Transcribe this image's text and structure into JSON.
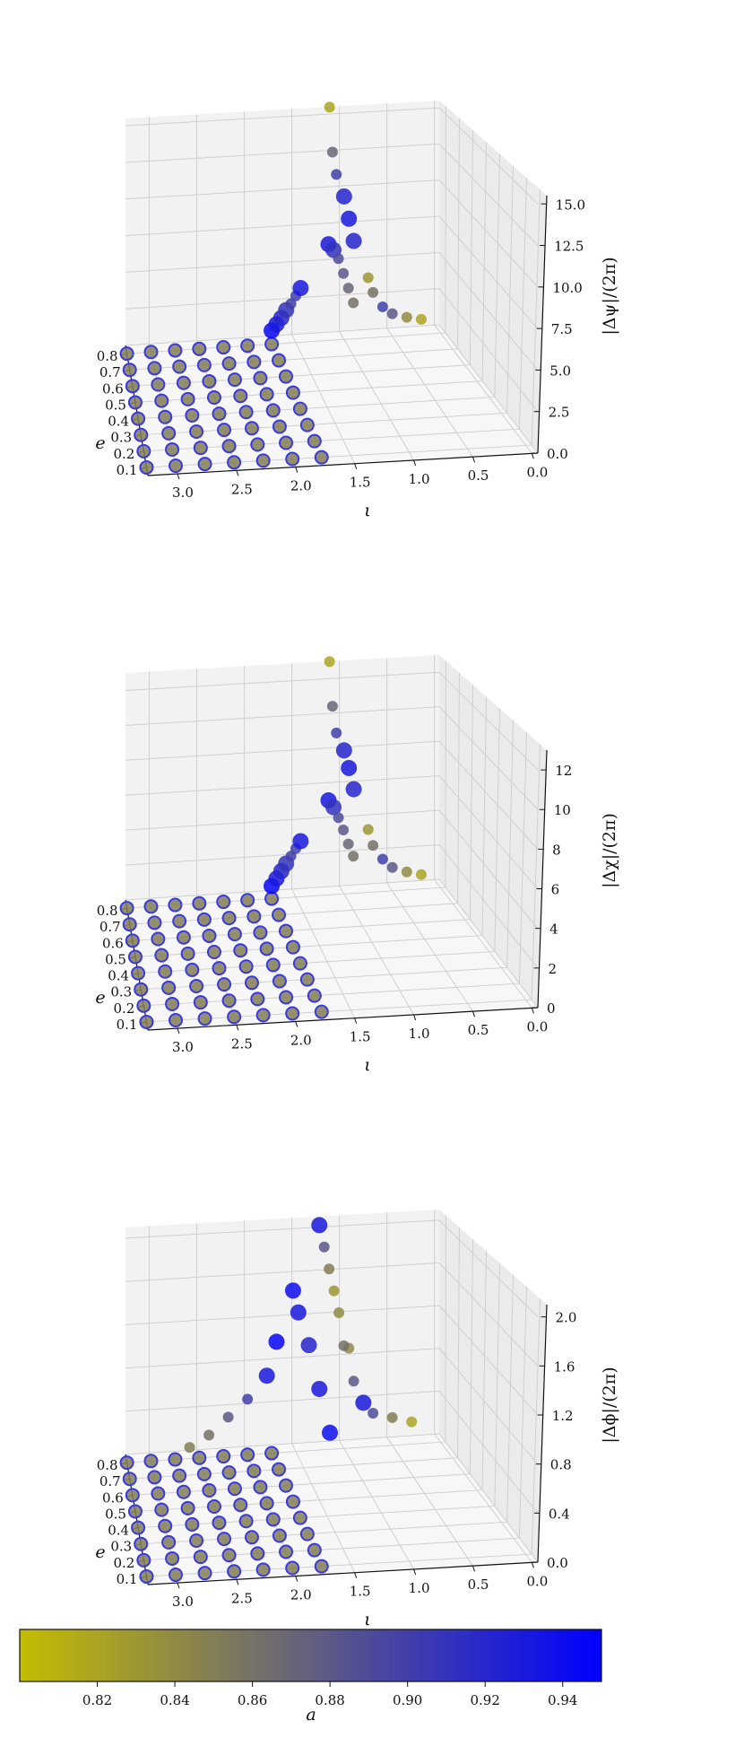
{
  "chart_data": [
    {
      "type": "scatter",
      "xlabel": "ι",
      "ylabel": "e",
      "zlabel": "|Δψ|/(2π)",
      "x_ticks": [
        "3.0",
        "2.5",
        "2.0",
        "1.5",
        "1.0",
        "0.5",
        "0.0"
      ],
      "y_ticks": [
        "0.1",
        "0.2",
        "0.3",
        "0.4",
        "0.5",
        "0.6",
        "0.7",
        "0.8"
      ],
      "z_ticks": [
        "0.0",
        "2.5",
        "5.0",
        "7.5",
        "10.0",
        "12.5",
        "15.0"
      ],
      "zlim": [
        0,
        15.5
      ],
      "grid": true,
      "flat_region": {
        "iota_range": [
          1.75,
          3.25
        ],
        "z": 0,
        "a": 0.85
      },
      "ridge_series": [
        {
          "iota": [
            1.75,
            1.7,
            1.65,
            1.6,
            1.55,
            1.5,
            1.45
          ],
          "e": 0.8,
          "z": [
            0.9,
            1.3,
            1.7,
            2.2,
            2.6,
            3.1,
            3.6
          ],
          "a": [
            0.945,
            0.93,
            0.92,
            0.91,
            0.9,
            0.9,
            0.93
          ]
        },
        {
          "iota": [
            1.25,
            1.2,
            1.15,
            1.1,
            1.05,
            1.0
          ],
          "e": 0.7,
          "z": [
            7.5,
            7.1,
            6.5,
            5.5,
            4.5,
            3.5
          ],
          "a": [
            0.93,
            0.91,
            0.89,
            0.88,
            0.87,
            0.86
          ]
        },
        {
          "iota": [
            1.15,
            1.12,
            1.08,
            1.0,
            0.95,
            0.9
          ],
          "e": 0.8,
          "z": [
            15.5,
            12.5,
            11.0,
            9.5,
            8.0,
            6.5
          ],
          "a": [
            0.82,
            0.87,
            0.9,
            0.92,
            0.93,
            0.92
          ]
        },
        {
          "iota": [
            0.75,
            0.7,
            0.6,
            0.5,
            0.35,
            0.2
          ],
          "e": 0.8,
          "z": [
            4.0,
            3.0,
            2.0,
            1.5,
            1.2,
            1.0
          ],
          "a": [
            0.83,
            0.86,
            0.9,
            0.88,
            0.84,
            0.82
          ]
        }
      ]
    },
    {
      "type": "scatter",
      "xlabel": "ι",
      "ylabel": "e",
      "zlabel": "|Δχ|/(2π)",
      "x_ticks": [
        "3.0",
        "2.5",
        "2.0",
        "1.5",
        "1.0",
        "0.5",
        "0.0"
      ],
      "y_ticks": [
        "0.1",
        "0.2",
        "0.3",
        "0.4",
        "0.5",
        "0.6",
        "0.7",
        "0.8"
      ],
      "z_ticks": [
        "0",
        "2",
        "4",
        "6",
        "8",
        "10",
        "12"
      ],
      "zlim": [
        0,
        13
      ],
      "grid": true,
      "flat_region": {
        "iota_range": [
          1.75,
          3.25
        ],
        "z": 0,
        "a": 0.85
      },
      "ridge_series": [
        {
          "iota": [
            1.75,
            1.7,
            1.65,
            1.6,
            1.55,
            1.5,
            1.45
          ],
          "e": 0.8,
          "z": [
            0.7,
            1.1,
            1.5,
            1.9,
            2.3,
            2.7,
            3.1
          ],
          "a": [
            0.945,
            0.93,
            0.92,
            0.91,
            0.9,
            0.9,
            0.93
          ]
        },
        {
          "iota": [
            1.25,
            1.2,
            1.15,
            1.1,
            1.05,
            1.0
          ],
          "e": 0.7,
          "z": [
            6.2,
            5.8,
            5.2,
            4.5,
            3.7,
            3.0
          ],
          "a": [
            0.93,
            0.91,
            0.89,
            0.88,
            0.87,
            0.86
          ]
        },
        {
          "iota": [
            1.15,
            1.12,
            1.08,
            1.0,
            0.95,
            0.9
          ],
          "e": 0.8,
          "z": [
            13.0,
            10.5,
            9.0,
            8.0,
            7.0,
            5.8
          ],
          "a": [
            0.82,
            0.87,
            0.9,
            0.92,
            0.93,
            0.92
          ]
        },
        {
          "iota": [
            0.75,
            0.7,
            0.6,
            0.5,
            0.35,
            0.2
          ],
          "e": 0.8,
          "z": [
            3.5,
            2.6,
            1.8,
            1.3,
            1.0,
            0.8
          ],
          "a": [
            0.83,
            0.86,
            0.9,
            0.88,
            0.84,
            0.82
          ]
        }
      ]
    },
    {
      "type": "scatter",
      "xlabel": "ι",
      "ylabel": "e",
      "zlabel": "|Δϕ|/(2π)",
      "x_ticks": [
        "3.0",
        "2.5",
        "2.0",
        "1.5",
        "1.0",
        "0.5",
        "0.0"
      ],
      "y_ticks": [
        "0.1",
        "0.2",
        "0.3",
        "0.4",
        "0.5",
        "0.6",
        "0.7",
        "0.8"
      ],
      "z_ticks": [
        "0.0",
        "0.4",
        "0.8",
        "1.2",
        "1.6",
        "2.0"
      ],
      "zlim": [
        0,
        2.1
      ],
      "grid": true,
      "flat_region": {
        "iota_range": [
          1.75,
          3.25
        ],
        "z": 0,
        "a": 0.85
      },
      "ridge_series": [
        {
          "iota": [
            2.6,
            2.4,
            2.2,
            2.0,
            1.8,
            1.7
          ],
          "e": 0.8,
          "z": [
            0.1,
            0.2,
            0.35,
            0.5,
            0.7,
            1.0
          ],
          "a": [
            0.85,
            0.86,
            0.88,
            0.9,
            0.93,
            0.945
          ]
        },
        {
          "iota": [
            1.75,
            1.7,
            1.6,
            1.5,
            1.4
          ],
          "e": 0.5,
          "z": [
            1.9,
            1.7,
            1.4,
            1.0,
            0.6
          ],
          "a": [
            0.94,
            0.93,
            0.92,
            0.93,
            0.94
          ]
        },
        {
          "iota": [
            1.3,
            1.25,
            1.2,
            1.15,
            1.1,
            1.05
          ],
          "e": 0.75,
          "z": [
            2.1,
            1.9,
            1.7,
            1.5,
            1.3,
            1.0
          ],
          "a": [
            0.93,
            0.88,
            0.85,
            0.83,
            0.84,
            0.86
          ]
        },
        {
          "iota": [
            0.95,
            0.9,
            0.8,
            0.7,
            0.5,
            0.3
          ],
          "e": 0.8,
          "z": [
            0.9,
            0.6,
            0.4,
            0.3,
            0.25,
            0.2
          ],
          "a": [
            0.84,
            0.88,
            0.93,
            0.89,
            0.85,
            0.82
          ]
        }
      ]
    }
  ],
  "colorbar": {
    "label": "a",
    "ticks": [
      "0.82",
      "0.84",
      "0.86",
      "0.88",
      "0.90",
      "0.92",
      "0.94"
    ],
    "tick_values": [
      0.82,
      0.84,
      0.86,
      0.88,
      0.9,
      0.92,
      0.94
    ],
    "range": [
      0.8,
      0.95
    ],
    "color_low": "#c4bd00",
    "color_high": "#0000ff"
  }
}
